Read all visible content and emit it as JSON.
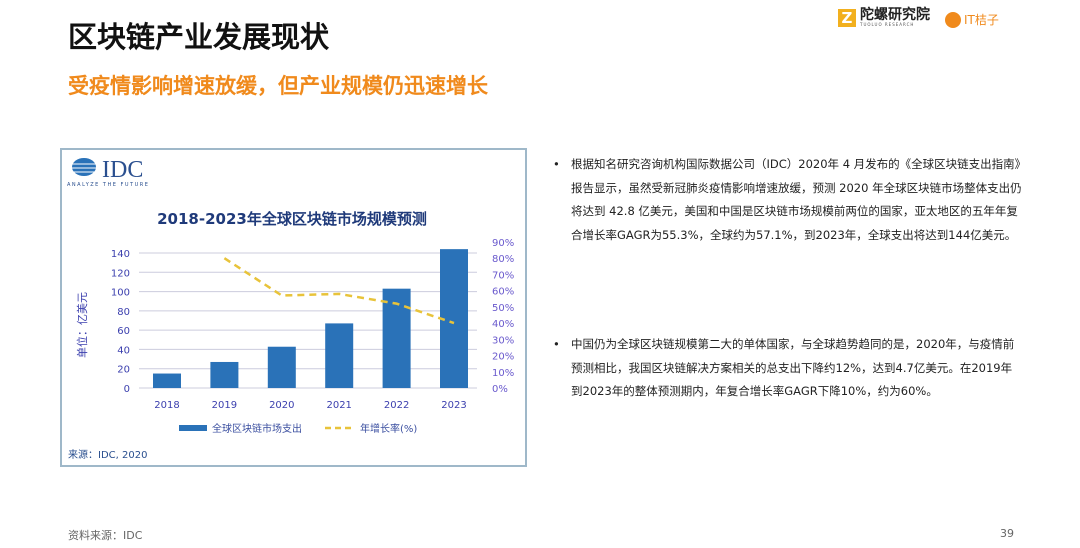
{
  "header": {
    "title": "区块链产业发展现状",
    "subtitle": "受疫情影响增速放缓，但产业规模仍迅速增长"
  },
  "logos": {
    "tuoluo_name": "陀螺研究院",
    "tuoluo_en": "TUOLUO RESEARCH",
    "itjuzi": "IT桔子",
    "idc": "IDC",
    "idc_tagline": "ANALYZE THE FUTURE"
  },
  "chart_data": {
    "type": "bar",
    "title": "2018-2023年全球区块链市场规模预测",
    "categories": [
      "2018",
      "2019",
      "2020",
      "2021",
      "2022",
      "2023"
    ],
    "series": [
      {
        "name": "全球区块链市场支出",
        "type": "bar",
        "axis": "left",
        "values": [
          15,
          27,
          42.8,
          67,
          103,
          144
        ],
        "color": "#2a72b8"
      },
      {
        "name": "年增长率(%)",
        "type": "line",
        "axis": "right",
        "values": [
          null,
          80,
          57,
          58,
          52,
          40
        ],
        "color": "#e8c33a"
      }
    ],
    "ylabel": "单位：亿美元",
    "ylim": [
      0,
      140
    ],
    "yticks": [
      "0",
      "20",
      "40",
      "60",
      "80",
      "100",
      "120",
      "140"
    ],
    "y2lim": [
      0,
      90
    ],
    "y2ticks": [
      "0%",
      "10%",
      "20%",
      "30%",
      "40%",
      "50%",
      "60%",
      "70%",
      "80%",
      "90%"
    ],
    "legend": "bottom",
    "grid": true,
    "source": "来源：IDC, 2020"
  },
  "bullets": [
    "根据知名研究咨询机构国际数据公司（IDC）2020年 4 月发布的《全球区块链支出指南》报告显示，虽然受新冠肺炎疫情影响增速放缓，预测 2020 年全球区块链市场整体支出仍将达到 42.8 亿美元，美国和中国是区块链市场规模前两位的国家，亚太地区的五年年复合增长率GAGR为55.3%，全球约为57.1%，到2023年，全球支出将达到144亿美元。",
    "中国仍为全球区块链规模第二大的单体国家，与全球趋势趋同的是，2020年，与疫情前预测相比，我国区块链解决方案相关的总支出下降约12%，达到4.7亿美元。在2019年到2023年的整体预测期内，年复合增长率GAGR下降10%，约为60%。"
  ],
  "footer": {
    "source": "资料来源：IDC",
    "page": "39"
  }
}
